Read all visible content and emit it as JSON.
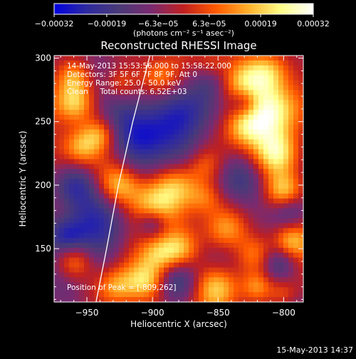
{
  "chart_data": {
    "type": "heatmap",
    "title": "Reconstructed RHESSI Image",
    "xlabel": "Heliocentric X (arcsec)",
    "ylabel": "Heliocentric Y (arcsec)",
    "xlim": [
      -975,
      -785
    ],
    "ylim": [
      108,
      302
    ],
    "x_ticks": [
      -950,
      -900,
      -850,
      -800
    ],
    "x_tick_labels": [
      "−950",
      "−900",
      "−850",
      "−800"
    ],
    "y_ticks": [
      150,
      200,
      250,
      300
    ],
    "y_tick_labels": [
      "150",
      "200",
      "250",
      "300"
    ],
    "colorbar": {
      "range": [
        -0.00032,
        0.00032
      ],
      "ticks": [
        -0.00032,
        -0.00019,
        -6.3e-05,
        6.3e-05,
        0.00019,
        0.00032
      ],
      "tick_labels": [
        "−0.00032",
        "−0.00019",
        "−6.3e−05",
        "6.3e−05",
        "0.00019",
        "0.00032"
      ],
      "unit_label": "(photons cm⁻² s⁻¹ asec⁻²)",
      "colors": [
        "#0000e0",
        "#2e2aa0",
        "#4a3a78",
        "#7a2a70",
        "#c02020",
        "#ff5a00",
        "#ffb02a",
        "#ffff88",
        "#ffffff"
      ]
    },
    "annotations": [
      "14-May-2013 15:53:56.000 to 15:58:22.000",
      "Detectors: 3F 5F 6F 7F 8F 9F, Att 0",
      "Energy Range: 25.0 - 50.0 keV",
      "Clean     Total counts: 6.52E+03"
    ],
    "peak_label": "Position of Peak = [-809,262]",
    "peak": [
      -809,
      262
    ],
    "limb_curve": [
      [
        -943,
        108
      ],
      [
        -935,
        150
      ],
      [
        -926,
        200
      ],
      [
        -915,
        250
      ],
      [
        -902,
        302
      ]
    ],
    "hotspots": [
      [
        -808,
        260,
        16,
        0.00032
      ],
      [
        -812,
        290,
        12,
        0.00026
      ],
      [
        -835,
        280,
        13,
        0.00022
      ],
      [
        -805,
        225,
        12,
        0.00022
      ],
      [
        -800,
        195,
        10,
        0.0002
      ],
      [
        -830,
        245,
        11,
        0.00018
      ],
      [
        -900,
        185,
        14,
        0.00028
      ],
      [
        -925,
        200,
        11,
        0.0002
      ],
      [
        -880,
        200,
        12,
        0.0002
      ],
      [
        -860,
        190,
        10,
        0.00016
      ],
      [
        -860,
        215,
        10,
        0.00014
      ],
      [
        -845,
        165,
        12,
        0.00022
      ],
      [
        -880,
        150,
        10,
        0.00016
      ],
      [
        -820,
        145,
        11,
        0.00018
      ],
      [
        -895,
        145,
        10,
        0.00016
      ],
      [
        -960,
        265,
        11,
        0.00022
      ],
      [
        -955,
        230,
        10,
        0.00018
      ],
      [
        -940,
        240,
        9,
        0.00016
      ],
      [
        -960,
        285,
        9,
        0.00014
      ],
      [
        -928,
        120,
        11,
        0.0002
      ],
      [
        -905,
        125,
        10,
        0.00016
      ],
      [
        -850,
        120,
        12,
        0.00024
      ],
      [
        -820,
        120,
        8,
        0.00014
      ],
      [
        -960,
        140,
        10,
        0.00018
      ],
      [
        -895,
        285,
        10,
        0.00016
      ],
      [
        -925,
        280,
        9,
        0.00014
      ],
      [
        -795,
        155,
        9,
        0.00016
      ],
      [
        -800,
        115,
        8,
        0.00012
      ],
      [
        -855,
        295,
        9,
        0.00014
      ]
    ],
    "coldspots": [
      [
        -940,
        175,
        20,
        0.00022
      ],
      [
        -905,
        240,
        18,
        0.00024
      ],
      [
        -870,
        260,
        16,
        0.00022
      ],
      [
        -855,
        285,
        13,
        0.0002
      ],
      [
        -835,
        205,
        15,
        0.0002
      ],
      [
        -795,
        180,
        10,
        0.00018
      ],
      [
        -960,
        200,
        12,
        0.00018
      ],
      [
        -965,
        160,
        10,
        0.00016
      ],
      [
        -880,
        125,
        12,
        0.00018
      ],
      [
        -805,
        140,
        10,
        0.00016
      ],
      [
        -900,
        170,
        8,
        0.00016
      ],
      [
        -830,
        265,
        8,
        0.00016
      ]
    ]
  },
  "timestamp": "15-May-2013 14:37"
}
